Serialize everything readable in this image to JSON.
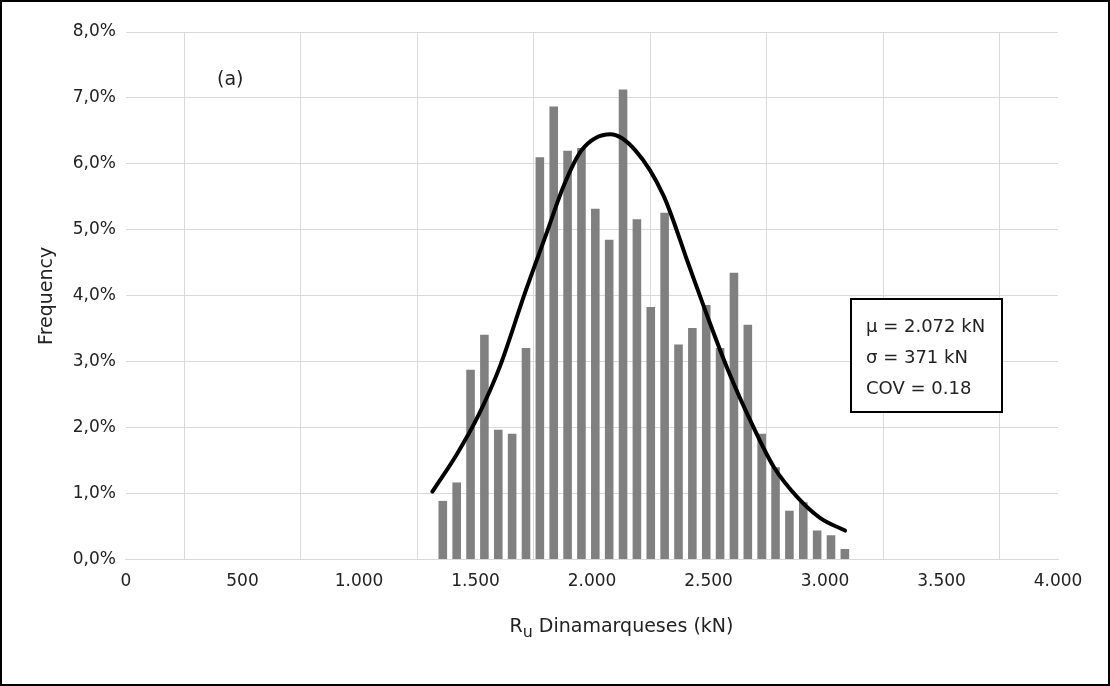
{
  "chart_data": {
    "type": "histogram",
    "xlabel": "R$_{u}$ Dinamarqueses (kN)",
    "ylabel": "Frequency",
    "bins": [
      1330,
      1389.5,
      1449,
      1508.5,
      1568,
      1627.5,
      1687,
      1746.5,
      1806,
      1865.5,
      1925,
      1984.5,
      2044,
      2103.5,
      2163,
      2222.5,
      2282,
      2341.5,
      2401,
      2460.5,
      2520,
      2579.5,
      2639,
      2698.5,
      2758,
      2817.5,
      2877,
      2936.5,
      2996,
      3055.5,
      3115
    ],
    "values": [
      0.89,
      1.17,
      2.88,
      3.41,
      1.97,
      1.91,
      3.21,
      6.1,
      6.87,
      6.2,
      6.24,
      5.32,
      4.85,
      7.13,
      5.16,
      3.83,
      5.26,
      3.26,
      3.51,
      3.86,
      3.21,
      4.35,
      3.56,
      1.91,
      1.4,
      0.74,
      0.87,
      0.44,
      0.37,
      0.16
    ],
    "color": "#808080",
    "series": [
      {
        "type": "line",
        "color": "#000000",
        "x": [
          1315,
          1422,
          1513,
          1605,
          1712,
          1804,
          1880,
          1956,
          2079,
          2185,
          2307,
          2415,
          2491,
          2583,
          2690,
          2781,
          2888,
          2980,
          3086
        ],
        "values": [
          1.03,
          1.61,
          2.19,
          2.93,
          4.04,
          4.94,
          5.68,
          6.21,
          6.45,
          6.21,
          5.52,
          4.47,
          3.73,
          2.88,
          2.03,
          1.4,
          0.92,
          0.63,
          0.44
        ]
      }
    ],
    "xlim": [
      0,
      4000
    ],
    "xticks": [
      0,
      500,
      {
        "value": 1000,
        "label": "1.000"
      },
      {
        "value": 1500,
        "label": "1.500"
      },
      {
        "value": 2000,
        "label": "2.000"
      },
      {
        "value": 2500,
        "label": "2.500"
      },
      {
        "value": 3000,
        "label": "3.000"
      },
      {
        "value": 3500,
        "label": "3.500"
      },
      {
        "value": 4000,
        "label": "4.000"
      }
    ],
    "ylim": [
      0,
      8
    ],
    "yticks": [
      {
        "value": 0,
        "label": "0,0%"
      },
      {
        "value": 1,
        "label": "1,0%"
      },
      {
        "value": 2,
        "label": "2,0%"
      },
      {
        "value": 3,
        "label": "3,0%"
      },
      {
        "value": 4,
        "label": "4,0%"
      },
      {
        "value": 5,
        "label": "5,0%"
      },
      {
        "value": 6,
        "label": "6,0%"
      },
      {
        "value": 7,
        "label": "7,0%"
      },
      {
        "value": 8,
        "label": "8,0%"
      }
    ],
    "grid": true,
    "marker": "none",
    "line_style": "solid",
    "annotations": [
      "(a)",
      "μ = 2.072 kN",
      "σ = 371 kN",
      "COV = 0.18"
    ]
  }
}
